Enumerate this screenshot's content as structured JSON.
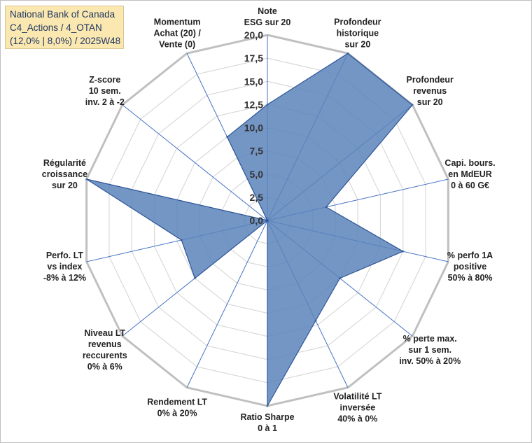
{
  "title_lines": [
    "National Bank of Canada",
    "C4_Actions / 4_OTAN",
    "(12,0% | 8,0%) / 2025W48"
  ],
  "chart_data": {
    "type": "radar",
    "rlim": [
      0,
      20
    ],
    "ticks": [
      "0,0",
      "2,5",
      "5,0",
      "7,5",
      "10,0",
      "12,5",
      "15,0",
      "17,5",
      "20,0"
    ],
    "tick_values": [
      0,
      2.5,
      5,
      7.5,
      10,
      12.5,
      15,
      17.5,
      20
    ],
    "categories": [
      [
        "Note",
        "ESG sur 20"
      ],
      [
        "Profondeur",
        "historique",
        "sur 20"
      ],
      [
        "Profondeur",
        "revenus",
        "sur 20"
      ],
      [
        "Capi. bours.",
        "en MdEUR",
        "0 à 60 G€"
      ],
      [
        "% perfo 1A",
        "positive",
        "50% à 80%"
      ],
      [
        "% perte max.",
        "sur 1 sem.",
        "inv. 50% à 20%"
      ],
      [
        "Volatilité LT",
        "inversée",
        "40% à 0%"
      ],
      [
        "Ratio Sharpe",
        "0 à 1"
      ],
      [
        "Rendement LT",
        "0% à 20%"
      ],
      [
        "Niveau LT",
        "revenus",
        "reccurents",
        "0% à 6%"
      ],
      [
        "Perfo. LT",
        "vs index",
        "-8% à 12%"
      ],
      [
        "Régularité",
        "croissance",
        "sur 20"
      ],
      [
        "Z-score",
        "10 sem.",
        "inv. 2 à -2"
      ],
      [
        "Momentum",
        "Achat (20) /",
        "Vente (0)"
      ]
    ],
    "values": [
      12.5,
      20,
      20,
      6.5,
      15,
      10,
      12,
      20,
      0,
      10,
      9.5,
      20,
      0,
      10
    ],
    "grid": true,
    "colors": {
      "fill": "#5b84bb",
      "line": "#2f5597",
      "axis": "#4472c4",
      "grid": "#d9d9d9",
      "outer_ring": "#c0c0c0"
    }
  }
}
